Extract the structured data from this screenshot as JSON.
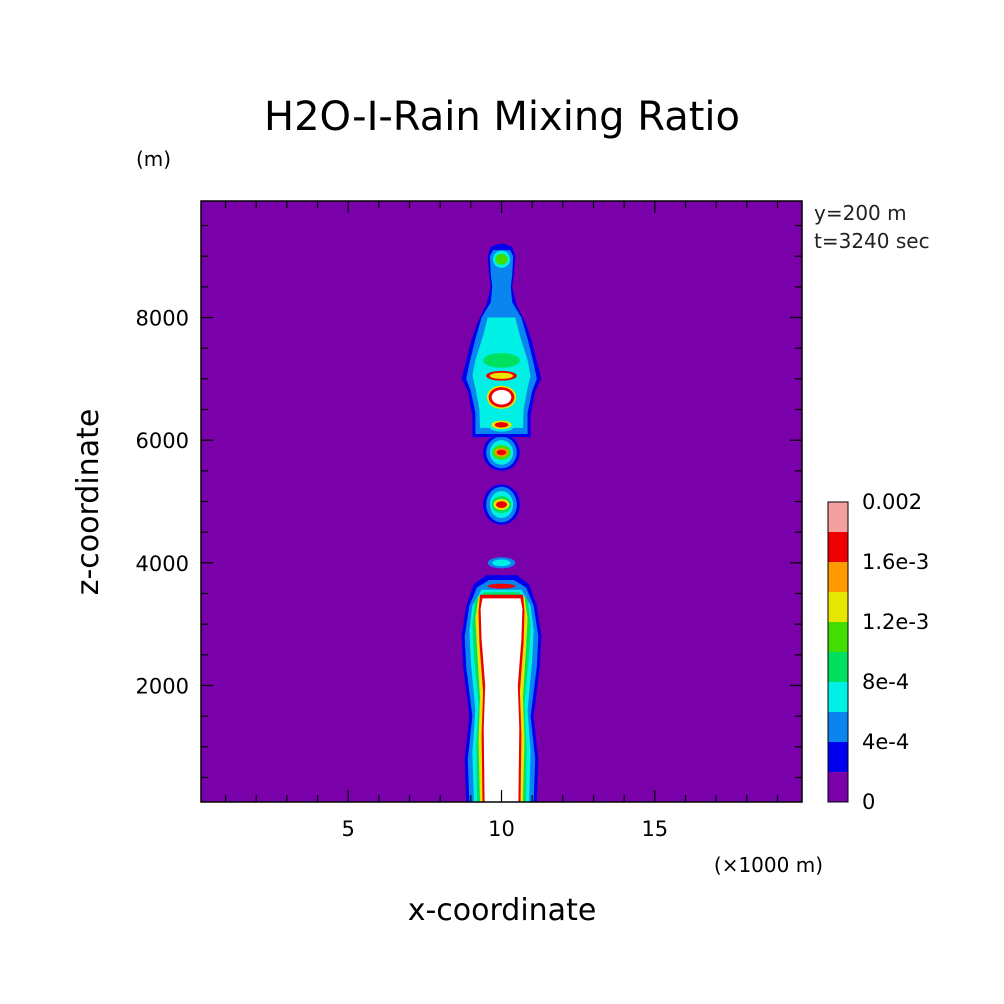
{
  "chart_data": {
    "type": "heatmap",
    "title": "H2O-I-Rain Mixing Ratio",
    "xlabel": "x-coordinate",
    "ylabel": "z-coordinate",
    "x_unit_label": "(×1000 m)",
    "y_unit_label": "(m)",
    "annotations": [
      "y=200 m",
      "t=3240 sec"
    ],
    "xlim": [
      0.2,
      19.8
    ],
    "ylim": [
      100,
      9900
    ],
    "x_ticks": [
      5,
      10,
      15
    ],
    "x_tick_labels": [
      "5",
      "10",
      "15"
    ],
    "y_ticks": [
      2000,
      4000,
      6000,
      8000
    ],
    "y_tick_labels": [
      "2000",
      "4000",
      "6000",
      "8000"
    ],
    "colorbar": {
      "levels": [
        0,
        0.0002,
        0.0004,
        0.0006,
        0.0008,
        0.001,
        0.0012,
        0.0014,
        0.0016,
        0.0018,
        0.002
      ],
      "colors": [
        "#7a00aa",
        "#0000ee",
        "#0a84ee",
        "#00f0e6",
        "#00e060",
        "#44dd00",
        "#e6e600",
        "#ff9900",
        "#ee0000",
        "#f5a0a0"
      ],
      "labels": [
        "0",
        "4e-4",
        "8e-4",
        "1.2e-3",
        "1.6e-3",
        "0.002"
      ],
      "label_values": [
        0,
        0.0004,
        0.0008,
        0.0012,
        0.0016,
        0.002
      ],
      "above_max_color": "#ffffff"
    },
    "features": [
      {
        "desc": "lower rain shaft",
        "x_center": 10.0,
        "z_range": [
          100,
          3600
        ],
        "value": "above 0.002"
      },
      {
        "desc": "rain blob",
        "x_center": 10.0,
        "z_center": 4000,
        "value": "4e-4 to 6e-4"
      },
      {
        "desc": "rain blob",
        "x_center": 10.0,
        "z_center": 4950,
        "value": "1.6e-3 to 1.8e-3"
      },
      {
        "desc": "rain blob",
        "x_center": 10.0,
        "z_center": 5800,
        "value": "1.6e-3 to 1.8e-3"
      },
      {
        "desc": "rain blob",
        "x_center": 10.0,
        "z_center": 6250,
        "value": "1.6e-3 to 1.8e-3"
      },
      {
        "desc": "rain core",
        "x_center": 10.0,
        "z_center": 6700,
        "value": "above 0.002"
      },
      {
        "desc": "upper cloud region",
        "x_center": 10.0,
        "z_range": [
          6900,
          9200
        ],
        "value": "up to 1.2e-3"
      }
    ]
  }
}
